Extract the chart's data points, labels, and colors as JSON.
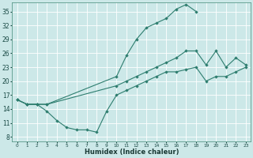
{
  "xlabel": "Humidex (Indice chaleur)",
  "bg_color": "#cce8e8",
  "grid_color": "#ffffff",
  "line_color": "#2d7d6e",
  "xlim": [
    -0.5,
    23.5
  ],
  "ylim": [
    7,
    37
  ],
  "xticks": [
    0,
    1,
    2,
    3,
    4,
    5,
    6,
    7,
    8,
    9,
    10,
    11,
    12,
    13,
    14,
    15,
    16,
    17,
    18,
    19,
    20,
    21,
    22,
    23
  ],
  "yticks": [
    8,
    11,
    14,
    17,
    20,
    23,
    26,
    29,
    32,
    35
  ],
  "line1_x": [
    0,
    1,
    2,
    3,
    10,
    11,
    12,
    13,
    14,
    15,
    16,
    17,
    18
  ],
  "line1_y": [
    16,
    15,
    15,
    15,
    21,
    25.5,
    29,
    31.5,
    32.5,
    33.5,
    35.5,
    36.5,
    35
  ],
  "line2_x": [
    0,
    1,
    2,
    3,
    10,
    11,
    12,
    13,
    14,
    15,
    16,
    17,
    18,
    19,
    20,
    21,
    22,
    23
  ],
  "line2_y": [
    16,
    15,
    15,
    15,
    19,
    20,
    21,
    22,
    23,
    24,
    25,
    26.5,
    26.5,
    23.5,
    26.5,
    23,
    25,
    23.5
  ],
  "line3_x": [
    0,
    1,
    2,
    3,
    4,
    5,
    6,
    7,
    8,
    9,
    10,
    11,
    12,
    13,
    14,
    15,
    16,
    17,
    18,
    19,
    20,
    21,
    22,
    23
  ],
  "line3_y": [
    16,
    15,
    15,
    13.5,
    11.5,
    10,
    9.5,
    9.5,
    9,
    13.5,
    17,
    18,
    19,
    20,
    21,
    22,
    22,
    22.5,
    23,
    20,
    21,
    21,
    22,
    23
  ],
  "figwidth": 3.2,
  "figheight": 2.0,
  "dpi": 100
}
